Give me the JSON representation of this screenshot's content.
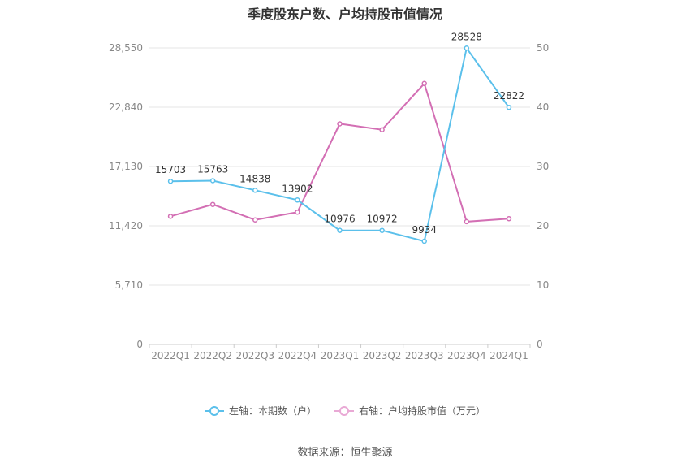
{
  "chart_data": {
    "type": "line",
    "title": "季度股东户数、户均持股市值情况",
    "categories": [
      "2022Q1",
      "2022Q2",
      "2022Q3",
      "2022Q4",
      "2023Q1",
      "2023Q2",
      "2023Q3",
      "2023Q4",
      "2024Q1"
    ],
    "series": [
      {
        "name": "左轴：本期数（户）",
        "axis": "left",
        "color": "#5bc0eb",
        "values": [
          15703,
          15763,
          14838,
          13902,
          10976,
          10972,
          9934,
          28528,
          22822
        ],
        "labels": [
          "15703",
          "15763",
          "14838",
          "13902",
          "10976",
          "10972",
          "9934",
          "28528",
          "22822"
        ]
      },
      {
        "name": "右轴：户均持股市值（万元）",
        "axis": "right",
        "color": "#d36fb4",
        "values": [
          21.6,
          23.6,
          21.0,
          22.3,
          37.2,
          36.2,
          44.0,
          20.7,
          21.2
        ]
      }
    ],
    "left_axis": {
      "ylim": [
        0,
        28550
      ],
      "ticks": [
        "0",
        "5,710",
        "11,420",
        "17,130",
        "22,840",
        "28,550"
      ],
      "tick_values": [
        0,
        5710,
        11420,
        17130,
        22840,
        28550
      ]
    },
    "right_axis": {
      "ylim": [
        0,
        50
      ],
      "ticks": [
        "0",
        "10",
        "20",
        "30",
        "40",
        "50"
      ],
      "tick_values": [
        0,
        10,
        20,
        30,
        40,
        50
      ]
    },
    "grid": true,
    "legend_position": "bottom"
  },
  "source": "数据来源：恒生聚源"
}
